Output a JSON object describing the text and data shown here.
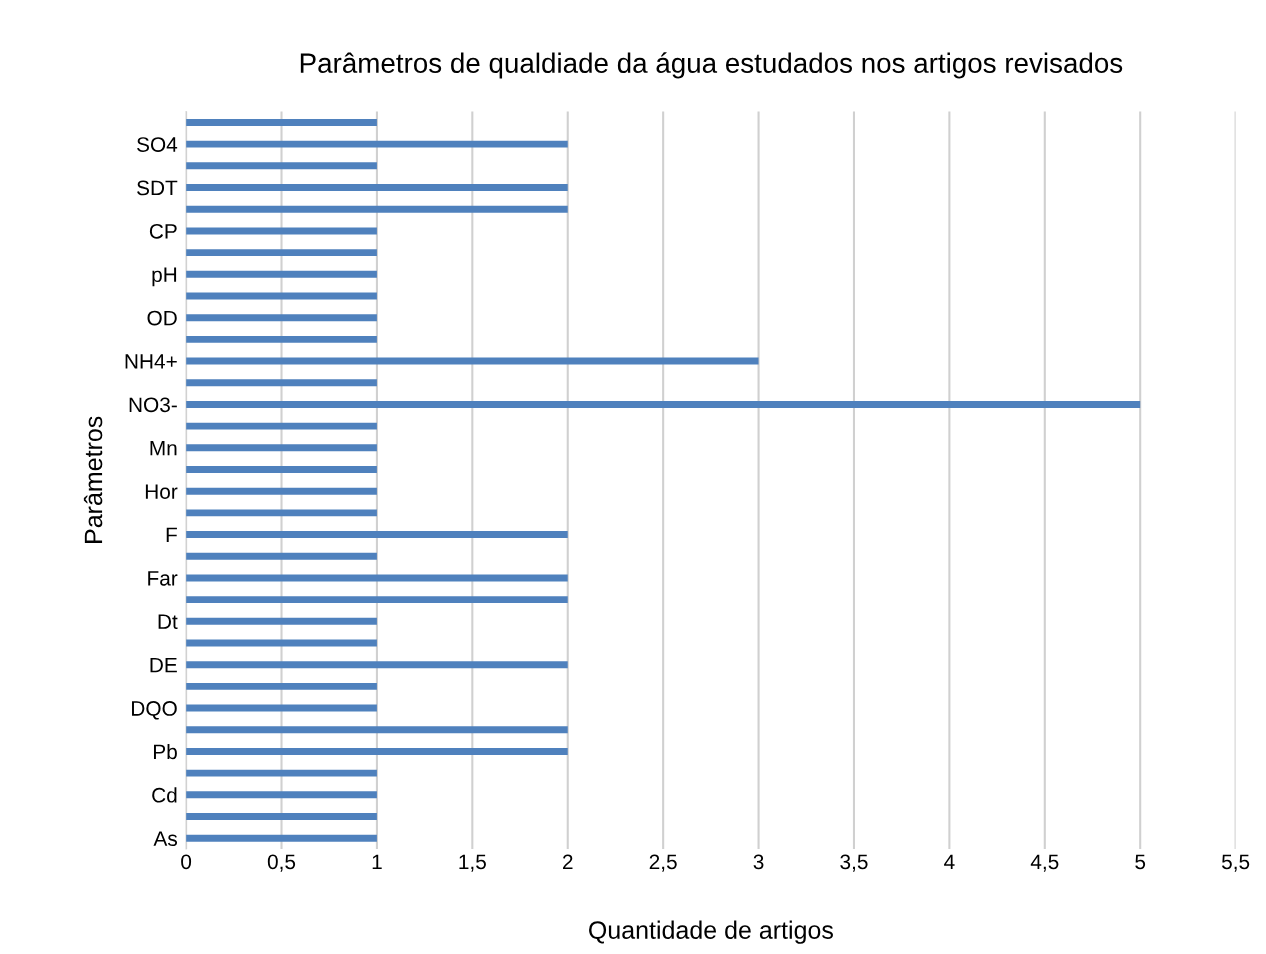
{
  "chart_data": {
    "type": "bar",
    "orientation": "horizontal",
    "title": "Parâmetros de qualdiade da água estudados nos artigos revisados",
    "xlabel": "Quantidade de artigos",
    "ylabel": "Parâmetros",
    "categories": [
      null,
      "SO4",
      null,
      "SDT",
      null,
      "CP",
      null,
      "pH",
      null,
      "OD",
      null,
      "NH4+",
      null,
      "NO3-",
      null,
      "Mn",
      null,
      "Hor",
      null,
      "F",
      null,
      "Far",
      null,
      "Dt",
      null,
      "DE",
      null,
      "DQO",
      null,
      "Pb",
      null,
      "Cd",
      null,
      "As"
    ],
    "values": [
      1,
      2,
      1,
      2,
      2,
      1,
      1,
      1,
      1,
      1,
      1,
      3,
      1,
      5,
      1,
      1,
      1,
      1,
      1,
      2,
      1,
      2,
      2,
      1,
      1,
      2,
      1,
      1,
      2,
      2,
      1,
      1,
      1,
      1
    ],
    "color": "#4f81bd",
    "xlim": [
      0,
      5.5
    ],
    "xticks": [
      0,
      {
        "value": 0.5,
        "label": "0,5"
      },
      1,
      {
        "value": 1.5,
        "label": "1,5"
      },
      2,
      {
        "value": 2.5,
        "label": "2,5"
      },
      3,
      {
        "value": 3.5,
        "label": "3,5"
      },
      4,
      {
        "value": 4.5,
        "label": "4,5"
      },
      5,
      {
        "value": 5.5,
        "label": "5,5"
      }
    ],
    "grid": "x",
    "legend": false
  }
}
